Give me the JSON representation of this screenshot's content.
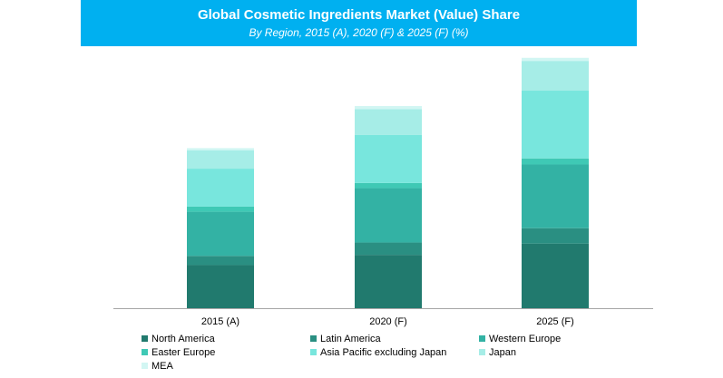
{
  "header": {
    "title": "Global Cosmetic Ingredients Market (Value) Share",
    "subtitle": "By Region, 2015 (A), 2020 (F) & 2025 (F) (%)"
  },
  "colors": {
    "header_bg": "#00b0f0",
    "axis": "#a6a6a6"
  },
  "chart_data": {
    "type": "bar",
    "stacked": true,
    "categories": [
      "2015 (A)",
      "2020 (F)",
      "2025 (F)"
    ],
    "series": [
      {
        "name": "North America",
        "color": "#217a6e",
        "values": [
          42,
          52,
          63
        ]
      },
      {
        "name": "Latin America",
        "color": "#2a8f82",
        "values": [
          9,
          12,
          15
        ]
      },
      {
        "name": "Western Europe",
        "color": "#33b2a4",
        "values": [
          43,
          53,
          62
        ]
      },
      {
        "name": "Easter Europe",
        "color": "#3fc9b5",
        "values": [
          5,
          5,
          6
        ]
      },
      {
        "name": "Asia Pacific excluding Japan",
        "color": "#78e6dd",
        "values": [
          37,
          47,
          66
        ]
      },
      {
        "name": "Japan",
        "color": "#a6ede7",
        "values": [
          18,
          25,
          29
        ]
      },
      {
        "name": "MEA",
        "color": "#d2f6f3",
        "values": [
          2,
          3,
          3
        ]
      }
    ],
    "ylim": [
      0,
      250
    ],
    "grid": false,
    "legend_position": "bottom"
  }
}
